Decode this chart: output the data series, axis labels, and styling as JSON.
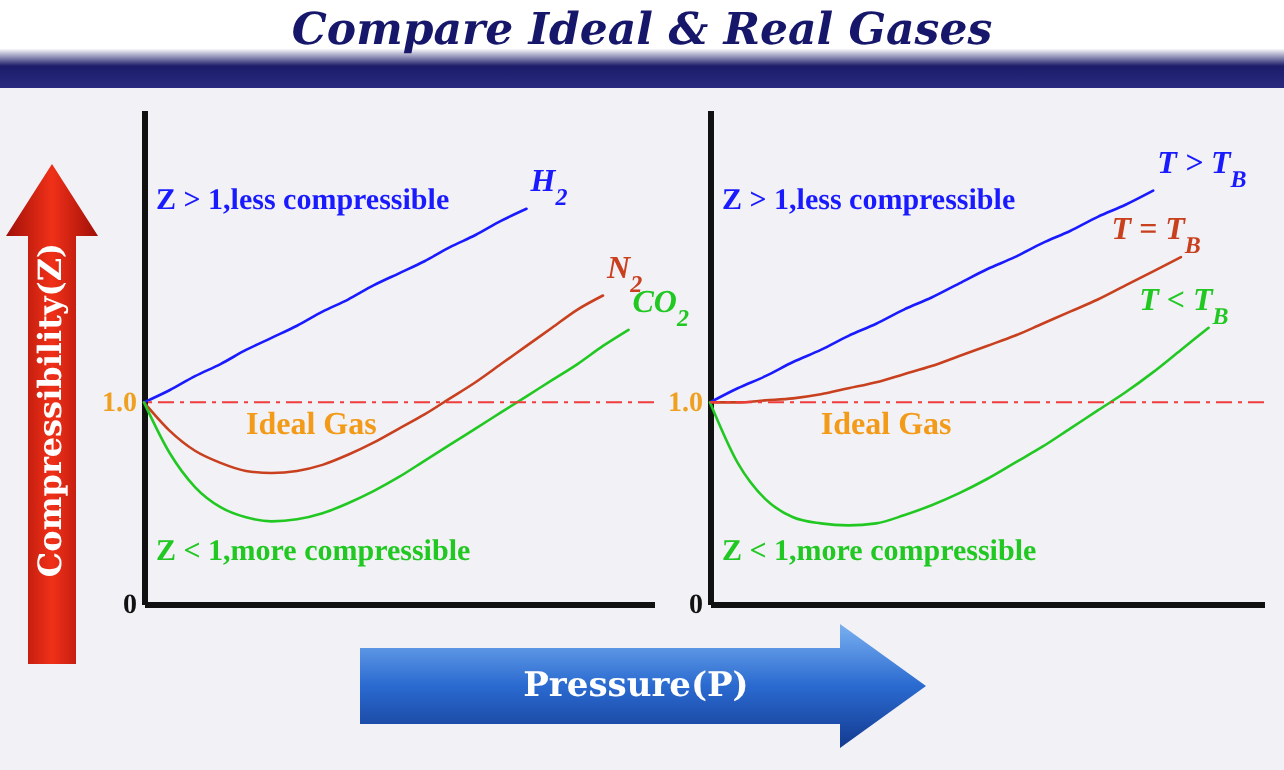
{
  "chart_data": [
    {
      "type": "line",
      "title": "Compare Ideal & Real Gases",
      "xlabel": "Pressure(P)",
      "ylabel": "Compressibility(Z)",
      "categories": [
        null,
        null,
        null,
        null,
        null,
        null,
        null,
        null,
        null,
        null,
        null,
        null,
        null,
        null,
        null,
        null,
        null,
        null,
        null,
        null,
        null
      ],
      "series": [
        {
          "name": "H$_{2}$",
          "color": "#1a1aff",
          "values": [
            1.0,
            1.06,
            1.13,
            1.19,
            1.26,
            1.32,
            1.38,
            1.45,
            1.51,
            1.58,
            1.64,
            1.7,
            1.77,
            1.83,
            1.9,
            1.96,
            null,
            null,
            null,
            null,
            null
          ]
        },
        {
          "name": "N$_{2}$",
          "color": "#c8401e",
          "values": [
            1.0,
            0.86,
            0.76,
            0.7,
            0.66,
            0.65,
            0.66,
            0.69,
            0.74,
            0.8,
            0.87,
            0.94,
            1.02,
            1.1,
            1.19,
            1.28,
            1.37,
            1.46,
            1.53,
            null,
            null
          ]
        },
        {
          "name": "CO$_{2}$",
          "color": "#22c822",
          "values": [
            1.0,
            0.75,
            0.58,
            0.48,
            0.43,
            0.41,
            0.42,
            0.45,
            0.5,
            0.56,
            0.63,
            0.71,
            0.79,
            0.87,
            0.95,
            1.03,
            1.11,
            1.19,
            1.28,
            1.36,
            null
          ]
        }
      ],
      "ylim": [
        0,
        2.45
      ],
      "yticks": [
        0,
        {
          "value": 1,
          "label": "1.0"
        }
      ],
      "tick_labels": "y",
      "grid": false,
      "legend": false,
      "ref_lines": [
        {
          "axis": "y",
          "value": 1,
          "label": "Ideal Gas",
          "color": "#f03c3c",
          "line_style": "dashed"
        }
      ],
      "annotations": [
        "Z > 1,less compressible",
        "Z < 1,more compressible"
      ]
    },
    {
      "type": "line",
      "categories": [
        null,
        null,
        null,
        null,
        null,
        null,
        null,
        null,
        null,
        null,
        null,
        null,
        null,
        null,
        null,
        null,
        null,
        null,
        null,
        null,
        null
      ],
      "series": [
        {
          "name": "T > T$_{B}$",
          "color": "#1a1aff",
          "values": [
            1.0,
            1.07,
            1.13,
            1.2,
            1.26,
            1.33,
            1.39,
            1.46,
            1.52,
            1.59,
            1.66,
            1.72,
            1.79,
            1.85,
            1.92,
            1.98,
            2.05,
            null,
            null,
            null,
            null
          ]
        },
        {
          "name": "T = T$_{B}$",
          "color": "#c8401e",
          "values": [
            1.0,
            1.0,
            1.01,
            1.02,
            1.04,
            1.07,
            1.1,
            1.14,
            1.18,
            1.23,
            1.28,
            1.33,
            1.39,
            1.45,
            1.51,
            1.58,
            1.65,
            1.72,
            null,
            null,
            null
          ]
        },
        {
          "name": "T < T$_{B}$",
          "color": "#22c822",
          "values": [
            1.0,
            0.7,
            0.52,
            0.43,
            0.4,
            0.39,
            0.4,
            0.44,
            0.49,
            0.55,
            0.62,
            0.7,
            0.78,
            0.87,
            0.96,
            1.05,
            1.15,
            1.26,
            1.37,
            null,
            null
          ]
        }
      ],
      "ylim": [
        0,
        2.45
      ],
      "yticks": [
        0,
        {
          "value": 1,
          "label": "1.0"
        }
      ],
      "tick_labels": "y",
      "grid": false,
      "legend": false,
      "ref_lines": [
        {
          "axis": "y",
          "value": 1,
          "label": "Ideal Gas",
          "color": "#f03c3c",
          "line_style": "dashed"
        }
      ],
      "annotations": [
        "Z > 1,less compressible",
        "Z < 1,more compressible"
      ]
    }
  ]
}
